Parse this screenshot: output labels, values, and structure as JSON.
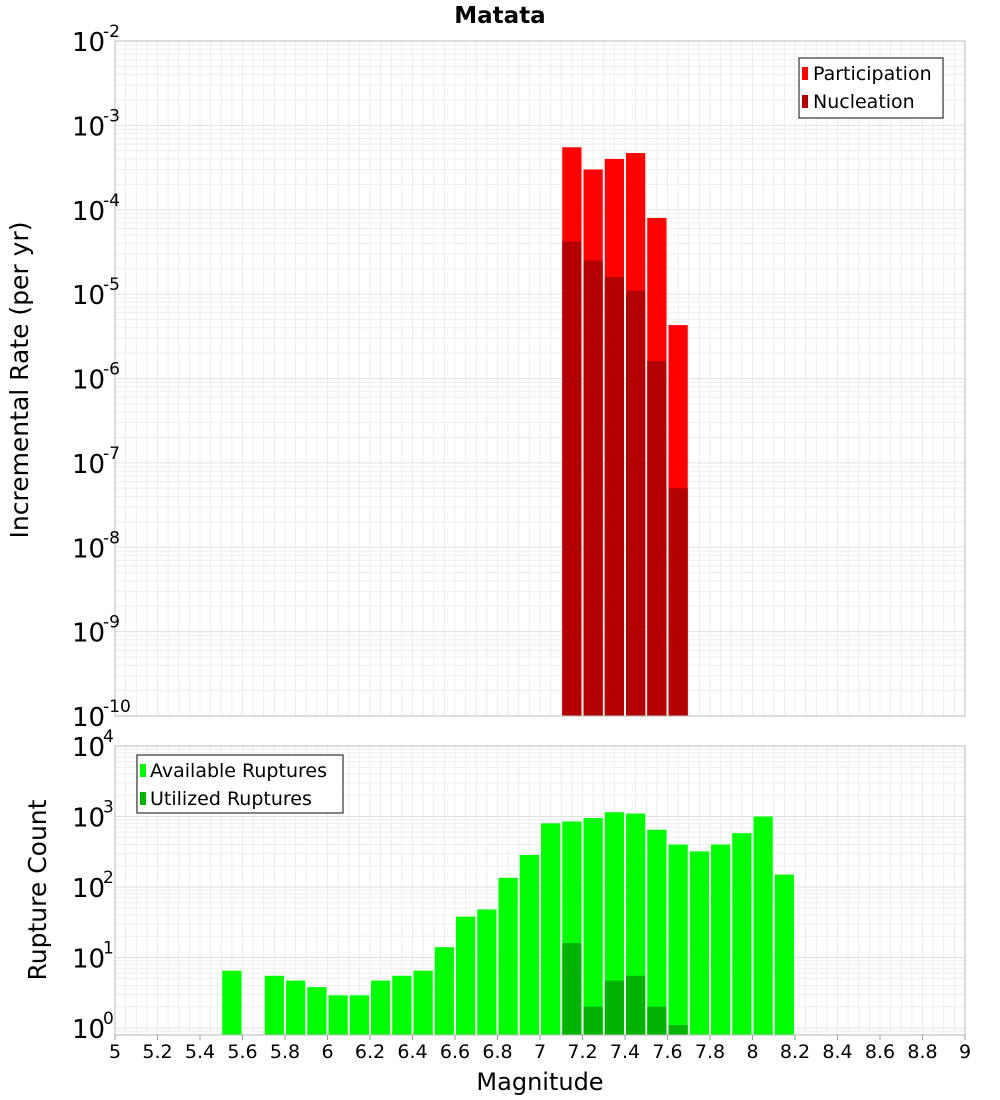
{
  "chart_data": [
    {
      "type": "bar",
      "title": "Matata",
      "xlabel": "",
      "ylabel": "Incremental Rate (per yr)",
      "y_scale": "log",
      "ylim_exponents": [
        -10,
        -2
      ],
      "y_tick_exponents": [
        -10,
        -9,
        -8,
        -7,
        -6,
        -5,
        -4,
        -3,
        -2
      ],
      "xlim": [
        5,
        9
      ],
      "grid": true,
      "legend_position": "top-right",
      "series": [
        {
          "name": "Participation",
          "color": "#ff0000",
          "x": [
            7.15,
            7.25,
            7.35,
            7.45,
            7.55,
            7.65
          ],
          "values": [
            0.00055,
            0.0003,
            0.0004,
            0.00047,
            8e-05,
            4.3e-06
          ]
        },
        {
          "name": "Nucleation",
          "color": "#b30000",
          "x": [
            7.15,
            7.25,
            7.35,
            7.45,
            7.55,
            7.65
          ],
          "values": [
            4.2e-05,
            2.5e-05,
            1.6e-05,
            1.1e-05,
            1.6e-06,
            5e-08
          ]
        }
      ]
    },
    {
      "type": "bar",
      "title": "",
      "xlabel": "Magnitude",
      "ylabel": "Rupture Count",
      "y_scale": "log",
      "ylim_exponents": [
        -0.1,
        4
      ],
      "y_tick_exponents": [
        0,
        1,
        2,
        3,
        4
      ],
      "xlim": [
        5,
        9
      ],
      "x_ticks": [
        "5",
        "5.2",
        "5.4",
        "5.6",
        "5.8",
        "6",
        "6.2",
        "6.4",
        "6.6",
        "6.8",
        "7",
        "7.2",
        "7.4",
        "7.6",
        "7.8",
        "8",
        "8.2",
        "8.4",
        "8.6",
        "8.8",
        "9"
      ],
      "grid": true,
      "legend_position": "top-left",
      "series": [
        {
          "name": "Available Ruptures",
          "color": "#00ff00",
          "x": [
            5.55,
            5.75,
            5.85,
            5.95,
            6.05,
            6.15,
            6.25,
            6.35,
            6.45,
            6.55,
            6.65,
            6.75,
            6.85,
            6.95,
            7.05,
            7.15,
            7.25,
            7.35,
            7.45,
            7.55,
            7.65,
            7.75,
            7.85,
            7.95,
            8.05,
            8.15
          ],
          "values": [
            6.5,
            5.5,
            4.7,
            3.8,
            2.9,
            2.9,
            4.7,
            5.5,
            6.5,
            14,
            38,
            48,
            135,
            285,
            800,
            850,
            950,
            1150,
            1100,
            650,
            400,
            320,
            400,
            580,
            1000,
            150
          ]
        },
        {
          "name": "Utilized Ruptures",
          "color": "#00b300",
          "x": [
            7.15,
            7.25,
            7.35,
            7.45,
            7.55,
            7.65
          ],
          "values": [
            16,
            2,
            4.7,
            5.5,
            2,
            1.1
          ]
        }
      ]
    }
  ]
}
